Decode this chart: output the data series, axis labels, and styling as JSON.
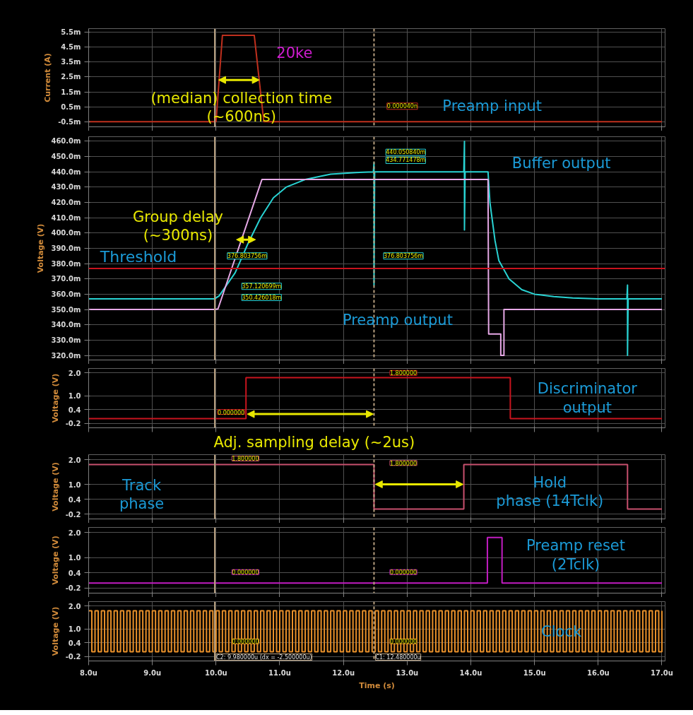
{
  "chart_data": [
    {
      "type": "line",
      "ylabel": "Current (A)",
      "xlim": [
        8,
        17.05
      ],
      "ylim": [
        -0.85,
        5.75
      ],
      "tick_labels": "y",
      "grid": true,
      "xticks": [
        {
          "value": 8,
          "label": null
        },
        {
          "value": 9,
          "label": null
        },
        {
          "value": 10,
          "label": null
        },
        {
          "value": 11,
          "label": null
        },
        {
          "value": 12,
          "label": null
        },
        {
          "value": 13,
          "label": null
        },
        {
          "value": 14,
          "label": null
        },
        {
          "value": 15,
          "label": null
        },
        {
          "value": 16,
          "label": null
        },
        {
          "value": 17,
          "label": null
        }
      ],
      "yticks": [
        {
          "value": -0.5,
          "label": "-0.5m"
        },
        {
          "value": 0.5,
          "label": "0.5m"
        },
        {
          "value": 1.5,
          "label": "1.5m"
        },
        {
          "value": 2.5,
          "label": "2.5m"
        },
        {
          "value": 3.5,
          "label": "3.5m"
        },
        {
          "value": 4.5,
          "label": "4.5m"
        },
        {
          "value": 5.5,
          "label": "5.5m"
        }
      ],
      "series": [
        {
          "color": "#c0301e",
          "x": [
            8,
            10.0,
            10.1,
            10.6,
            10.75,
            17.0
          ],
          "values": [
            -0.5,
            -0.5,
            5.3,
            5.3,
            -0.5,
            -0.5
          ]
        }
      ],
      "ref_lines": [
        {
          "axis": "x",
          "value": 9.98,
          "color": "#b8a080",
          "line_style": "solid"
        },
        {
          "axis": "x",
          "value": 12.48,
          "color": "#b8a080",
          "line_style": "dashed"
        }
      ],
      "annotations": [
        "20ke",
        "(median) collection time\n(~600ns)",
        "0.000040n",
        "Preamp input"
      ]
    },
    {
      "type": "line",
      "ylabel": "Voltage (V)",
      "xlim": [
        8,
        17.05
      ],
      "ylim": [
        317,
        463
      ],
      "tick_labels": "y",
      "grid": true,
      "xticks": [
        {
          "value": 8,
          "label": null
        },
        {
          "value": 9,
          "label": null
        },
        {
          "value": 10,
          "label": null
        },
        {
          "value": 11,
          "label": null
        },
        {
          "value": 12,
          "label": null
        },
        {
          "value": 13,
          "label": null
        },
        {
          "value": 14,
          "label": null
        },
        {
          "value": 15,
          "label": null
        },
        {
          "value": 16,
          "label": null
        },
        {
          "value": 17,
          "label": null
        }
      ],
      "yticks": [
        {
          "value": 320,
          "label": "320.0m"
        },
        {
          "value": 330,
          "label": "330.0m"
        },
        {
          "value": 340,
          "label": "340.0m"
        },
        {
          "value": 350,
          "label": "350.0m"
        },
        {
          "value": 360,
          "label": "360.0m"
        },
        {
          "value": 370,
          "label": "370.0m"
        },
        {
          "value": 380,
          "label": "380.0m"
        },
        {
          "value": 390,
          "label": "390.0m"
        },
        {
          "value": 400,
          "label": "400.0m"
        },
        {
          "value": 410,
          "label": "410.0m"
        },
        {
          "value": 420,
          "label": "420.0m"
        },
        {
          "value": 430,
          "label": "430.0m"
        },
        {
          "value": 440,
          "label": "440.0m"
        },
        {
          "value": 450,
          "label": "450.0m"
        },
        {
          "value": 460,
          "label": "460.0m"
        }
      ],
      "series": [
        {
          "color": "#29d3d3",
          "x": [
            8,
            9.98,
            10.05,
            10.15,
            10.3,
            10.5,
            10.7,
            10.9,
            11.1,
            11.4,
            11.8,
            12.2,
            12.47,
            12.48,
            12.48,
            12.49,
            12.5,
            13.0,
            13.5,
            13.89,
            13.9,
            13.9,
            13.91,
            14.27,
            14.3,
            14.38,
            14.44,
            14.6,
            14.8,
            15.0,
            15.3,
            15.6,
            16.0,
            16.45,
            16.46,
            16.46,
            16.47,
            17.0
          ],
          "values": [
            357,
            357,
            359,
            365,
            374,
            393,
            410,
            423,
            430,
            435,
            438.5,
            439.6,
            440,
            446,
            366,
            440,
            440,
            440,
            440,
            440,
            460,
            402,
            440,
            440,
            420,
            395,
            382,
            370,
            363,
            360,
            358.5,
            357.5,
            357,
            357,
            366,
            320,
            357,
            357
          ]
        },
        {
          "color": "#e6a8e6",
          "x": [
            8,
            9.98,
            10.03,
            10.72,
            14.27,
            14.28,
            14.47,
            14.47,
            14.52,
            14.52,
            17.0
          ],
          "values": [
            350,
            350,
            350.4,
            435,
            435,
            334,
            334,
            320,
            320,
            350,
            350
          ]
        }
      ],
      "ref_lines": [
        {
          "axis": "y",
          "value": 376.8,
          "label": "Threshold",
          "color": "#c8141e",
          "line_style": "solid"
        },
        {
          "axis": "x",
          "value": 9.98,
          "color": "#b8a080",
          "line_style": "solid"
        },
        {
          "axis": "x",
          "value": 12.48,
          "color": "#b8a080",
          "line_style": "dashed"
        }
      ],
      "annotations": [
        "Group delay\n(~300ns)",
        "Buffer output",
        "Preamp output",
        "376.803756m",
        "376.803756m",
        "357.120699m",
        "350.426018m",
        "440.050840m",
        "434.771478m"
      ]
    },
    {
      "type": "step",
      "ylabel": "Voltage (V)",
      "xlim": [
        8,
        17.05
      ],
      "ylim": [
        -0.4,
        2.2
      ],
      "tick_labels": "y",
      "grid": true,
      "xticks": [
        {
          "value": 8,
          "label": null
        },
        {
          "value": 9,
          "label": null
        },
        {
          "value": 10,
          "label": null
        },
        {
          "value": 11,
          "label": null
        },
        {
          "value": 12,
          "label": null
        },
        {
          "value": 13,
          "label": null
        },
        {
          "value": 14,
          "label": null
        },
        {
          "value": 15,
          "label": null
        },
        {
          "value": 16,
          "label": null
        },
        {
          "value": 17,
          "label": null
        }
      ],
      "yticks": [
        {
          "value": -0.2,
          "label": "-0.2"
        },
        {
          "value": 0.4,
          "label": "0.4"
        },
        {
          "value": 1.0,
          "label": "1.0"
        },
        {
          "value": 2.0,
          "label": "2.0"
        }
      ],
      "series": [
        {
          "color": "#c8141e",
          "x": [
            8,
            10.47,
            14.62,
            17.0
          ],
          "values": [
            0,
            1.8,
            0,
            0
          ]
        }
      ],
      "ref_lines": [
        {
          "axis": "x",
          "value": 9.98,
          "color": "#b8a080",
          "line_style": "solid"
        },
        {
          "axis": "x",
          "value": 12.48,
          "color": "#b8a080",
          "line_style": "dashed"
        }
      ],
      "annotations": [
        "Discriminator\noutput",
        {
          "text": "0.000000",
          "x": 9.98,
          "y": 0
        },
        "1.800000",
        "Adj. sampling delay (~2us)"
      ]
    },
    {
      "type": "step",
      "ylabel": "Voltage (V)",
      "xlim": [
        8,
        17.05
      ],
      "ylim": [
        -0.4,
        2.2
      ],
      "tick_labels": "y",
      "grid": true,
      "xticks": [
        {
          "value": 8,
          "label": null
        },
        {
          "value": 9,
          "label": null
        },
        {
          "value": 10,
          "label": null
        },
        {
          "value": 11,
          "label": null
        },
        {
          "value": 12,
          "label": null
        },
        {
          "value": 13,
          "label": null
        },
        {
          "value": 14,
          "label": null
        },
        {
          "value": 15,
          "label": null
        },
        {
          "value": 16,
          "label": null
        },
        {
          "value": 17,
          "label": null
        }
      ],
      "yticks": [
        {
          "value": -0.2,
          "label": "-0.2"
        },
        {
          "value": 0.4,
          "label": "0.4"
        },
        {
          "value": 1.0,
          "label": "1.0"
        },
        {
          "value": 2.0,
          "label": "2.0"
        }
      ],
      "series": [
        {
          "color": "#c8506e",
          "x": [
            8,
            12.48,
            13.89,
            16.46,
            17.0
          ],
          "values": [
            1.8,
            0,
            1.8,
            0,
            0
          ]
        }
      ],
      "ref_lines": [
        {
          "axis": "x",
          "value": 9.98,
          "color": "#b8a080",
          "line_style": "solid"
        },
        {
          "axis": "x",
          "value": 12.48,
          "color": "#b8a080",
          "line_style": "dashed"
        }
      ],
      "annotations": [
        "Track\nphase",
        "1.800000",
        "1.800000",
        "Hold\nphase (14Tclk)"
      ]
    },
    {
      "type": "step",
      "ylabel": "Voltage (V)",
      "xlim": [
        8,
        17.05
      ],
      "ylim": [
        -0.4,
        2.2
      ],
      "tick_labels": "y",
      "grid": true,
      "xticks": [
        {
          "value": 8,
          "label": null
        },
        {
          "value": 9,
          "label": null
        },
        {
          "value": 10,
          "label": null
        },
        {
          "value": 11,
          "label": null
        },
        {
          "value": 12,
          "label": null
        },
        {
          "value": 13,
          "label": null
        },
        {
          "value": 14,
          "label": null
        },
        {
          "value": 15,
          "label": null
        },
        {
          "value": 16,
          "label": null
        },
        {
          "value": 17,
          "label": null
        }
      ],
      "yticks": [
        {
          "value": -0.2,
          "label": "-0.2"
        },
        {
          "value": 0.4,
          "label": "0.4"
        },
        {
          "value": 1.0,
          "label": "1.0"
        },
        {
          "value": 2.0,
          "label": "2.0"
        }
      ],
      "series": [
        {
          "color": "#c21cc2",
          "x": [
            8,
            14.26,
            14.49,
            17.0
          ],
          "values": [
            0,
            1.8,
            0,
            0
          ]
        }
      ],
      "ref_lines": [
        {
          "axis": "x",
          "value": 9.98,
          "color": "#b8a080",
          "line_style": "solid"
        },
        {
          "axis": "x",
          "value": 12.48,
          "color": "#b8a080",
          "line_style": "dashed"
        }
      ],
      "annotations": [
        "Preamp reset\n(2Tclk)",
        "0.000000",
        "0.000000"
      ]
    },
    {
      "type": "step",
      "xlabel": "Time (s)",
      "ylabel": "Voltage (V)",
      "xlim": [
        8,
        17.05
      ],
      "ylim": [
        -0.4,
        2.2
      ],
      "grid": true,
      "xticks": [
        {
          "value": 8,
          "label": "8.0u"
        },
        {
          "value": 9,
          "label": "9.0u"
        },
        {
          "value": 10,
          "label": "10.0u"
        },
        {
          "value": 11,
          "label": "11.0u"
        },
        {
          "value": 12,
          "label": "12.0u"
        },
        {
          "value": 13,
          "label": "13.0u"
        },
        {
          "value": 14,
          "label": "14.0u"
        },
        {
          "value": 15,
          "label": "15.0u"
        },
        {
          "value": 16,
          "label": "16.0u"
        },
        {
          "value": 17,
          "label": "17.0u"
        }
      ],
      "yticks": [
        {
          "value": -0.2,
          "label": "-0.2"
        },
        {
          "value": 0.4,
          "label": "0.4"
        },
        {
          "value": 1.0,
          "label": "1.0"
        },
        {
          "value": 2.0,
          "label": "2.0"
        }
      ],
      "series": [
        {
          "color": "#e8902a",
          "x": [
            8,
            8.05,
            8.1,
            8.15,
            8.2,
            8.25,
            8.3,
            8.35,
            8.4,
            8.45,
            8.5,
            8.55,
            8.6,
            8.65,
            8.7,
            8.75,
            8.8,
            8.85,
            8.9,
            8.95,
            9,
            9.05,
            9.1,
            9.15,
            9.2,
            9.25,
            9.3,
            9.35,
            9.4,
            9.45,
            9.5,
            9.55,
            9.6,
            9.65,
            9.7,
            9.75,
            9.8,
            9.85,
            9.9,
            9.95,
            10,
            10.05,
            10.1,
            10.15,
            10.2,
            10.25,
            10.3,
            10.35,
            10.4,
            10.45,
            10.5,
            10.55,
            10.6,
            10.65,
            10.7,
            10.75,
            10.8,
            10.85,
            10.9,
            10.95,
            11,
            11.05,
            11.1,
            11.15,
            11.2,
            11.25,
            11.3,
            11.35,
            11.4,
            11.45,
            11.5,
            11.55,
            11.6,
            11.65,
            11.7,
            11.75,
            11.8,
            11.85,
            11.9,
            11.95,
            12,
            12.05,
            12.1,
            12.15,
            12.2,
            12.25,
            12.3,
            12.35,
            12.4,
            12.45,
            12.5,
            12.55,
            12.6,
            12.65,
            12.7,
            12.75,
            12.8,
            12.85,
            12.9,
            12.95,
            13,
            13.05,
            13.1,
            13.15,
            13.2,
            13.25,
            13.3,
            13.35,
            13.4,
            13.45,
            13.5,
            13.55,
            13.6,
            13.65,
            13.7,
            13.75,
            13.8,
            13.85,
            13.9,
            13.95,
            14,
            14.05,
            14.1,
            14.15,
            14.2,
            14.25,
            14.3,
            14.35,
            14.4,
            14.45,
            14.5,
            14.55,
            14.6,
            14.65,
            14.7,
            14.75,
            14.8,
            14.85,
            14.9,
            14.95,
            15,
            15.05,
            15.1,
            15.15,
            15.2,
            15.25,
            15.3,
            15.35,
            15.4,
            15.45,
            15.5,
            15.55,
            15.6,
            15.65,
            15.7,
            15.75,
            15.8,
            15.85,
            15.9,
            15.95,
            16,
            16.05,
            16.1,
            16.15,
            16.2,
            16.25,
            16.3,
            16.35,
            16.4,
            16.45,
            16.5,
            16.55,
            16.6,
            16.65,
            16.7,
            16.75,
            16.8,
            16.85,
            16.9,
            16.95,
            17
          ],
          "values": [
            1.8,
            0,
            1.8,
            0,
            1.8,
            0,
            1.8,
            0,
            1.8,
            0,
            1.8,
            0,
            1.8,
            0,
            1.8,
            0,
            1.8,
            0,
            1.8,
            0,
            1.8,
            0,
            1.8,
            0,
            1.8,
            0,
            1.8,
            0,
            1.8,
            0,
            1.8,
            0,
            1.8,
            0,
            1.8,
            0,
            1.8,
            0,
            1.8,
            0,
            1.8,
            0,
            1.8,
            0,
            1.8,
            0,
            1.8,
            0,
            1.8,
            0,
            1.8,
            0,
            1.8,
            0,
            1.8,
            0,
            1.8,
            0,
            1.8,
            0,
            1.8,
            0,
            1.8,
            0,
            1.8,
            0,
            1.8,
            0,
            1.8,
            0,
            1.8,
            0,
            1.8,
            0,
            1.8,
            0,
            1.8,
            0,
            1.8,
            0,
            1.8,
            0,
            1.8,
            0,
            1.8,
            0,
            1.8,
            0,
            1.8,
            0,
            1.8,
            0,
            1.8,
            0,
            1.8,
            0,
            1.8,
            0,
            1.8,
            0,
            1.8,
            0,
            1.8,
            0,
            1.8,
            0,
            1.8,
            0,
            1.8,
            0,
            1.8,
            0,
            1.8,
            0,
            1.8,
            0,
            1.8,
            0,
            1.8,
            0,
            1.8,
            0,
            1.8,
            0,
            1.8,
            0,
            1.8,
            0,
            1.8,
            0,
            1.8,
            0,
            1.8,
            0,
            1.8,
            0,
            1.8,
            0,
            1.8,
            0,
            1.8,
            0,
            1.8,
            0,
            1.8,
            0,
            1.8,
            0,
            1.8,
            0,
            1.8,
            0,
            1.8,
            0,
            1.8,
            0,
            1.8,
            0,
            1.8,
            0,
            1.8,
            0,
            1.8,
            0,
            1.8,
            0,
            1.8,
            0,
            1.8,
            0,
            1.8,
            0,
            1.8,
            0,
            1.8,
            0,
            1.8,
            0,
            1.8,
            0,
            1.8
          ]
        }
      ],
      "ref_lines": [
        {
          "axis": "x",
          "value": 9.98,
          "label": "C2: 9.980000u (dx = -2.500000u)",
          "color": "#b8a080",
          "line_style": "solid"
        },
        {
          "axis": "x",
          "value": 12.48,
          "label": "C1: 12.480000u",
          "color": "#b8a080",
          "line_style": "dashed"
        }
      ],
      "annotations": [
        "Clock",
        "0.000000",
        "0.000000"
      ]
    }
  ]
}
